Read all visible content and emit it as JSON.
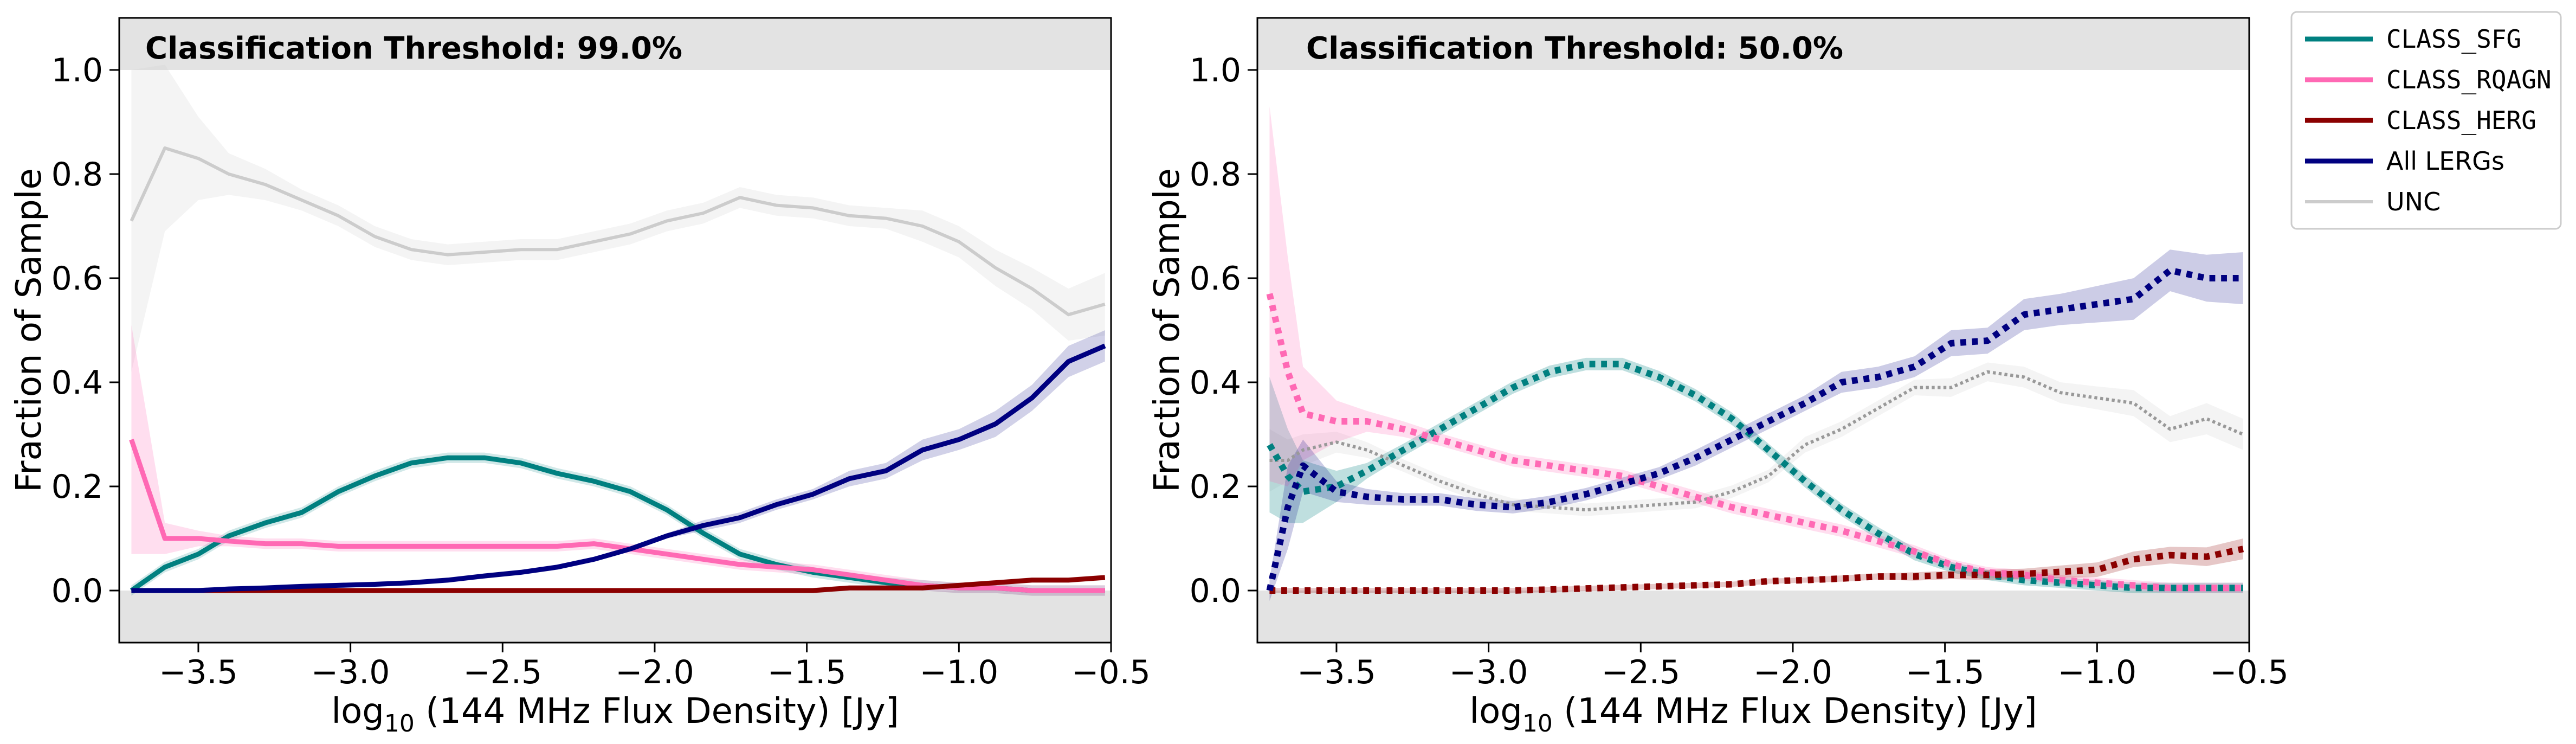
{
  "chart_data": [
    {
      "type": "line",
      "title": "Classification Threshold: 99.0%",
      "xlabel_prefix": "log",
      "xlabel_sub": "10",
      "xlabel_suffix": " (144 MHz Flux Density) [Jy]",
      "ylabel": "Fraction of Sample",
      "xlim": [
        -3.76,
        -0.5
      ],
      "ylim": [
        -0.1,
        1.1
      ],
      "xticks": [
        -3.5,
        -3.0,
        -2.5,
        -2.0,
        -1.5,
        -1.0,
        -0.5
      ],
      "xtick_labels": [
        "−3.5",
        "−3.0",
        "−2.5",
        "−2.0",
        "−1.5",
        "−1.0",
        "−0.5"
      ],
      "yticks": [
        0.0,
        0.2,
        0.4,
        0.6,
        0.8,
        1.0
      ],
      "ytick_labels": [
        "0.0",
        "0.2",
        "0.4",
        "0.6",
        "0.8",
        "1.0"
      ],
      "x": [
        -3.72,
        -3.61,
        -3.5,
        -3.4,
        -3.28,
        -3.16,
        -3.04,
        -2.92,
        -2.8,
        -2.68,
        -2.56,
        -2.44,
        -2.32,
        -2.2,
        -2.08,
        -1.96,
        -1.84,
        -1.72,
        -1.6,
        -1.48,
        -1.36,
        -1.24,
        -1.12,
        -1.0,
        -0.88,
        -0.76,
        -0.64,
        -0.52
      ],
      "series": [
        {
          "name": "UNC",
          "color": "#cccccc",
          "style": "solid",
          "lw": 6,
          "band": true,
          "band_color": "#cccccc",
          "band_opacity": 0.22,
          "band_width": [
            0.29,
            0.16,
            0.08,
            0.04,
            0.03,
            0.02,
            0.02,
            0.02,
            0.02,
            0.02,
            0.02,
            0.02,
            0.02,
            0.02,
            0.02,
            0.02,
            0.02,
            0.02,
            0.02,
            0.02,
            0.02,
            0.02,
            0.03,
            0.03,
            0.035,
            0.04,
            0.05,
            0.06
          ],
          "values": [
            0.71,
            0.85,
            0.83,
            0.8,
            0.78,
            0.75,
            0.72,
            0.68,
            0.655,
            0.645,
            0.65,
            0.655,
            0.655,
            0.67,
            0.685,
            0.71,
            0.725,
            0.755,
            0.74,
            0.735,
            0.72,
            0.715,
            0.7,
            0.67,
            0.62,
            0.58,
            0.53,
            0.55
          ]
        },
        {
          "name": "CLASS_SFG",
          "color": "#008080",
          "style": "solid",
          "lw": 9,
          "band": true,
          "band_color": "#008080",
          "band_opacity": 0.18,
          "band_width": [
            0.01,
            0.01,
            0.01,
            0.01,
            0.01,
            0.01,
            0.01,
            0.01,
            0.01,
            0.01,
            0.01,
            0.01,
            0.01,
            0.01,
            0.01,
            0.01,
            0.01,
            0.01,
            0.01,
            0.01,
            0.01,
            0.01,
            0.01,
            0.01,
            0.01,
            0.01,
            0.01,
            0.01
          ],
          "values": [
            0.0,
            0.045,
            0.07,
            0.105,
            0.13,
            0.15,
            0.19,
            0.22,
            0.245,
            0.255,
            0.255,
            0.245,
            0.225,
            0.21,
            0.19,
            0.155,
            0.11,
            0.07,
            0.05,
            0.035,
            0.025,
            0.015,
            0.01,
            0.005,
            0.005,
            0.0,
            0.0,
            0.0
          ]
        },
        {
          "name": "CLASS_RQAGN",
          "color": "#ff69b4",
          "style": "solid",
          "lw": 9,
          "band": true,
          "band_color": "#ff69b4",
          "band_opacity": 0.22,
          "band_width": [
            0.22,
            0.03,
            0.015,
            0.01,
            0.01,
            0.01,
            0.01,
            0.01,
            0.01,
            0.01,
            0.01,
            0.01,
            0.01,
            0.01,
            0.01,
            0.01,
            0.01,
            0.01,
            0.01,
            0.01,
            0.01,
            0.01,
            0.01,
            0.01,
            0.01,
            0.01,
            0.01,
            0.01
          ],
          "values": [
            0.29,
            0.1,
            0.1,
            0.095,
            0.09,
            0.09,
            0.085,
            0.085,
            0.085,
            0.085,
            0.085,
            0.085,
            0.085,
            0.09,
            0.08,
            0.07,
            0.06,
            0.05,
            0.045,
            0.04,
            0.03,
            0.02,
            0.01,
            0.005,
            0.005,
            0.0,
            0.0,
            0.0
          ]
        },
        {
          "name": "CLASS_HERG",
          "color": "#8b0000",
          "style": "solid",
          "lw": 9,
          "band": true,
          "band_color": "#8b0000",
          "band_opacity": 0.18,
          "band_width": [
            0.005,
            0.005,
            0.005,
            0.005,
            0.005,
            0.005,
            0.005,
            0.005,
            0.005,
            0.005,
            0.005,
            0.005,
            0.005,
            0.005,
            0.005,
            0.005,
            0.005,
            0.005,
            0.005,
            0.005,
            0.005,
            0.005,
            0.005,
            0.005,
            0.005,
            0.005,
            0.005,
            0.005
          ],
          "values": [
            0.0,
            0.0,
            0.0,
            0.0,
            0.0,
            0.0,
            0.0,
            0.0,
            0.0,
            0.0,
            0.0,
            0.0,
            0.0,
            0.0,
            0.0,
            0.0,
            0.0,
            0.0,
            0.0,
            0.0,
            0.005,
            0.005,
            0.005,
            0.01,
            0.015,
            0.02,
            0.02,
            0.025
          ]
        },
        {
          "name": "All LERGs",
          "color": "#000080",
          "style": "solid",
          "lw": 9,
          "band": true,
          "band_color": "#000080",
          "band_opacity": 0.18,
          "band_width": [
            0.005,
            0.005,
            0.005,
            0.005,
            0.005,
            0.005,
            0.005,
            0.005,
            0.005,
            0.005,
            0.005,
            0.005,
            0.005,
            0.005,
            0.005,
            0.005,
            0.01,
            0.01,
            0.01,
            0.01,
            0.015,
            0.015,
            0.02,
            0.02,
            0.025,
            0.025,
            0.03,
            0.03
          ],
          "values": [
            0.0,
            0.0,
            0.0,
            0.003,
            0.005,
            0.008,
            0.01,
            0.012,
            0.015,
            0.02,
            0.028,
            0.035,
            0.045,
            0.06,
            0.08,
            0.105,
            0.125,
            0.14,
            0.165,
            0.185,
            0.215,
            0.23,
            0.27,
            0.29,
            0.32,
            0.37,
            0.44,
            0.47
          ]
        }
      ]
    },
    {
      "type": "line",
      "title": "Classification Threshold: 50.0%",
      "xlabel_prefix": "log",
      "xlabel_sub": "10",
      "xlabel_suffix": " (144 MHz Flux Density) [Jy]",
      "ylabel": "Fraction of Sample",
      "xlim": [
        -3.76,
        -0.5
      ],
      "ylim": [
        -0.1,
        1.1
      ],
      "xticks": [
        -3.5,
        -3.0,
        -2.5,
        -2.0,
        -1.5,
        -1.0,
        -0.5
      ],
      "xtick_labels": [
        "−3.5",
        "−3.0",
        "−2.5",
        "−2.0",
        "−1.5",
        "−1.0",
        "−0.5"
      ],
      "yticks": [
        0.0,
        0.2,
        0.4,
        0.6,
        0.8,
        1.0
      ],
      "ytick_labels": [
        "0.0",
        "0.2",
        "0.4",
        "0.6",
        "0.8",
        "1.0"
      ],
      "x": [
        -3.72,
        -3.66,
        -3.61,
        -3.5,
        -3.4,
        -3.28,
        -3.16,
        -3.04,
        -2.92,
        -2.8,
        -2.68,
        -2.56,
        -2.44,
        -2.32,
        -2.2,
        -2.08,
        -1.96,
        -1.84,
        -1.72,
        -1.6,
        -1.48,
        -1.36,
        -1.24,
        -1.12,
        -1.0,
        -0.88,
        -0.76,
        -0.64,
        -0.52
      ],
      "series": [
        {
          "name": "UNC",
          "color": "#999999",
          "style": "dotted",
          "lw": 6,
          "band": true,
          "band_color": "#cccccc",
          "band_opacity": 0.22,
          "band_width": [
            0.06,
            0.04,
            0.03,
            0.02,
            0.015,
            0.012,
            0.012,
            0.012,
            0.012,
            0.012,
            0.012,
            0.012,
            0.012,
            0.012,
            0.012,
            0.012,
            0.015,
            0.015,
            0.015,
            0.015,
            0.018,
            0.018,
            0.02,
            0.02,
            0.022,
            0.025,
            0.025,
            0.03,
            0.03
          ],
          "values": [
            0.25,
            0.25,
            0.27,
            0.285,
            0.27,
            0.24,
            0.21,
            0.185,
            0.165,
            0.16,
            0.155,
            0.16,
            0.165,
            0.17,
            0.19,
            0.22,
            0.28,
            0.31,
            0.35,
            0.39,
            0.39,
            0.42,
            0.41,
            0.38,
            0.37,
            0.36,
            0.31,
            0.33,
            0.3
          ]
        },
        {
          "name": "CLASS_SFG",
          "color": "#008080",
          "style": "dotted",
          "lw": 12,
          "band": true,
          "band_color": "#008080",
          "band_opacity": 0.25,
          "band_width": [
            0.13,
            0.09,
            0.06,
            0.03,
            0.015,
            0.012,
            0.012,
            0.012,
            0.012,
            0.012,
            0.012,
            0.012,
            0.012,
            0.012,
            0.012,
            0.012,
            0.012,
            0.012,
            0.012,
            0.012,
            0.01,
            0.01,
            0.01,
            0.01,
            0.01,
            0.01,
            0.01,
            0.01,
            0.01
          ],
          "values": [
            0.28,
            0.22,
            0.19,
            0.2,
            0.23,
            0.27,
            0.31,
            0.35,
            0.39,
            0.42,
            0.435,
            0.435,
            0.41,
            0.375,
            0.33,
            0.27,
            0.21,
            0.155,
            0.11,
            0.07,
            0.045,
            0.03,
            0.02,
            0.015,
            0.01,
            0.005,
            0.005,
            0.005,
            0.005
          ]
        },
        {
          "name": "CLASS_RQAGN",
          "color": "#ff69b4",
          "style": "dotted",
          "lw": 12,
          "band": true,
          "band_color": "#ff69b4",
          "band_opacity": 0.22,
          "band_width": [
            0.36,
            0.22,
            0.09,
            0.04,
            0.02,
            0.015,
            0.012,
            0.012,
            0.012,
            0.012,
            0.012,
            0.012,
            0.012,
            0.012,
            0.012,
            0.012,
            0.012,
            0.012,
            0.012,
            0.012,
            0.01,
            0.01,
            0.01,
            0.01,
            0.01,
            0.01,
            0.01,
            0.01,
            0.01
          ],
          "values": [
            0.57,
            0.42,
            0.34,
            0.325,
            0.325,
            0.31,
            0.29,
            0.27,
            0.25,
            0.24,
            0.23,
            0.22,
            0.2,
            0.18,
            0.16,
            0.145,
            0.13,
            0.115,
            0.095,
            0.075,
            0.05,
            0.035,
            0.03,
            0.02,
            0.015,
            0.01,
            0.005,
            0.005,
            0.005
          ]
        },
        {
          "name": "CLASS_HERG",
          "color": "#8b0000",
          "style": "dotted",
          "lw": 12,
          "band": true,
          "band_color": "#8b0000",
          "band_opacity": 0.22,
          "band_width": [
            0.005,
            0.005,
            0.005,
            0.005,
            0.005,
            0.005,
            0.005,
            0.005,
            0.005,
            0.005,
            0.005,
            0.005,
            0.005,
            0.005,
            0.005,
            0.005,
            0.005,
            0.006,
            0.006,
            0.008,
            0.008,
            0.01,
            0.01,
            0.012,
            0.014,
            0.015,
            0.016,
            0.018,
            0.02
          ],
          "values": [
            0.0,
            0.0,
            0.0,
            0.0,
            0.0,
            0.0,
            0.0,
            0.0,
            0.0,
            0.002,
            0.004,
            0.006,
            0.008,
            0.01,
            0.012,
            0.018,
            0.02,
            0.023,
            0.027,
            0.027,
            0.03,
            0.03,
            0.032,
            0.036,
            0.04,
            0.06,
            0.068,
            0.065,
            0.08
          ]
        },
        {
          "name": "All LERGs",
          "color": "#000080",
          "style": "dotted",
          "lw": 12,
          "band": true,
          "band_color": "#000080",
          "band_opacity": 0.2,
          "band_width": [
            0.02,
            0.08,
            0.05,
            0.02,
            0.015,
            0.012,
            0.012,
            0.012,
            0.012,
            0.012,
            0.012,
            0.012,
            0.012,
            0.015,
            0.015,
            0.015,
            0.015,
            0.02,
            0.02,
            0.02,
            0.025,
            0.025,
            0.03,
            0.03,
            0.035,
            0.04,
            0.04,
            0.045,
            0.05
          ],
          "values": [
            0.0,
            0.16,
            0.24,
            0.19,
            0.18,
            0.175,
            0.175,
            0.165,
            0.16,
            0.17,
            0.185,
            0.205,
            0.225,
            0.255,
            0.29,
            0.325,
            0.36,
            0.4,
            0.41,
            0.43,
            0.475,
            0.48,
            0.53,
            0.54,
            0.55,
            0.56,
            0.615,
            0.6,
            0.6
          ]
        }
      ]
    }
  ],
  "legend": {
    "location": "upper-right, outside plots",
    "items": [
      {
        "label": "CLASS_SFG",
        "color": "#008080",
        "lw": 9,
        "mono": true
      },
      {
        "label": "CLASS_RQAGN",
        "color": "#ff69b4",
        "lw": 9,
        "mono": true
      },
      {
        "label": "CLASS_HERG",
        "color": "#8b0000",
        "lw": 9,
        "mono": true
      },
      {
        "label": "All LERGs",
        "color": "#000080",
        "lw": 9,
        "mono": false
      },
      {
        "label": "UNC",
        "color": "#cccccc",
        "lw": 6,
        "mono": false
      }
    ]
  },
  "colors": {
    "shaded_region": "#e3e3e3",
    "axes": "#000000"
  }
}
